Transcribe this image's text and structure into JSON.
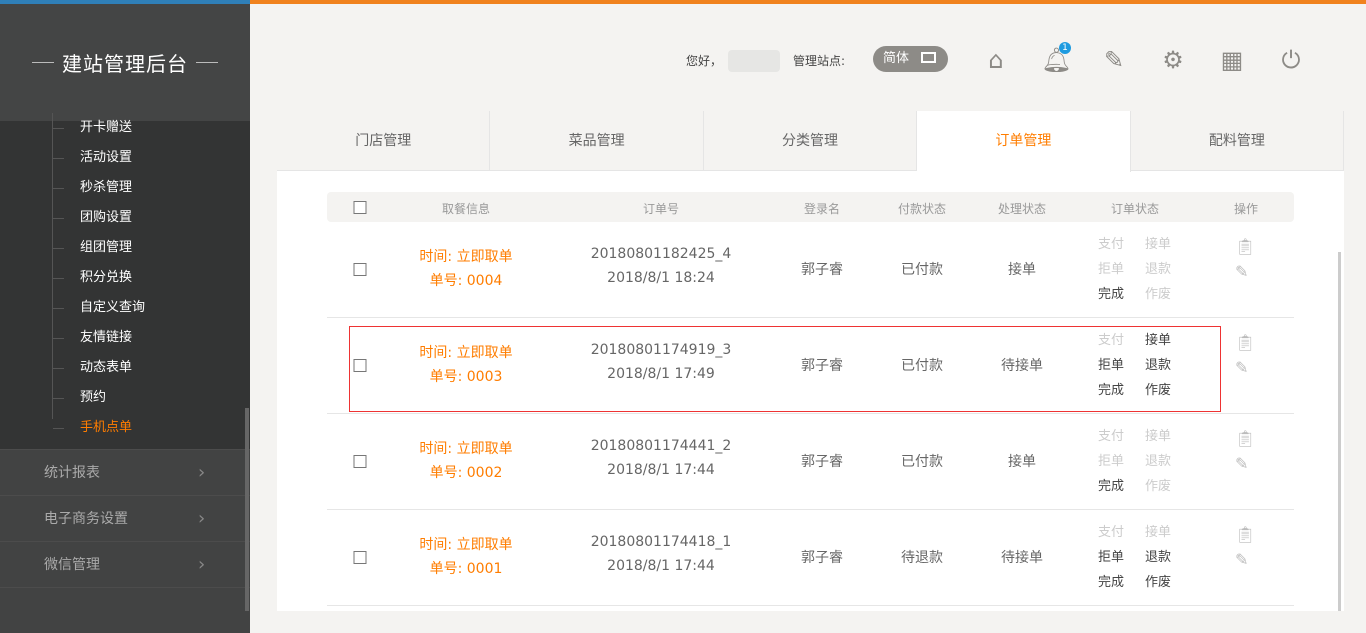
{
  "colors": {
    "accent": "#ff7d00",
    "sidebar": "#333434",
    "badge": "#1e9be0",
    "highlight": "#ee3333"
  },
  "sidebar": {
    "title": "建站管理后台",
    "subitems": [
      "开卡赠送",
      "活动设置",
      "秒杀管理",
      "团购设置",
      "组团管理",
      "积分兑换",
      "自定义查询",
      "友情链接",
      "动态表单",
      "预约",
      "手机点单"
    ],
    "active_subitem": "手机点单",
    "menus": [
      "统计报表",
      "电子商务设置",
      "微信管理"
    ]
  },
  "header": {
    "greeting": "您好，",
    "site_label": "管理站点:",
    "lang": "简体",
    "notification_count": "1",
    "icons": [
      "home-icon",
      "bell-icon",
      "edit-icon",
      "gear-icon",
      "grid-icon",
      "power-icon"
    ]
  },
  "tabs": [
    "门店管理",
    "菜品管理",
    "分类管理",
    "订单管理",
    "配料管理"
  ],
  "active_tab": "订单管理",
  "table": {
    "headers": [
      "取餐信息",
      "订单号",
      "登录名",
      "付款状态",
      "处理状态",
      "订单状态",
      "操作"
    ],
    "rows": [
      {
        "time": "时间: 立即取单",
        "num": "单号: 0004",
        "order_no": "20180801182425_4",
        "date": "2018/8/1 18:24",
        "user": "郭子睿",
        "pay": "已付款",
        "proc": "接单",
        "actions": [
          [
            "支付",
            false
          ],
          [
            "接单",
            false
          ],
          [
            "拒单",
            false
          ],
          [
            "退款",
            false
          ],
          [
            "完成",
            true
          ],
          [
            "作废",
            false
          ]
        ]
      },
      {
        "time": "时间: 立即取单",
        "num": "单号: 0003",
        "order_no": "20180801174919_3",
        "date": "2018/8/1 17:49",
        "user": "郭子睿",
        "pay": "已付款",
        "proc": "待接单",
        "actions": [
          [
            "支付",
            false
          ],
          [
            "接单",
            true
          ],
          [
            "拒单",
            true
          ],
          [
            "退款",
            true
          ],
          [
            "完成",
            true
          ],
          [
            "作废",
            true
          ]
        ]
      },
      {
        "time": "时间: 立即取单",
        "num": "单号: 0002",
        "order_no": "20180801174441_2",
        "date": "2018/8/1 17:44",
        "user": "郭子睿",
        "pay": "已付款",
        "proc": "接单",
        "actions": [
          [
            "支付",
            false
          ],
          [
            "接单",
            false
          ],
          [
            "拒单",
            false
          ],
          [
            "退款",
            false
          ],
          [
            "完成",
            true
          ],
          [
            "作废",
            false
          ]
        ]
      },
      {
        "time": "时间: 立即取单",
        "num": "单号: 0001",
        "order_no": "20180801174418_1",
        "date": "2018/8/1 17:44",
        "user": "郭子睿",
        "pay": "待退款",
        "proc": "待接单",
        "actions": [
          [
            "支付",
            false
          ],
          [
            "接单",
            false
          ],
          [
            "拒单",
            true
          ],
          [
            "退款",
            true
          ],
          [
            "完成",
            true
          ],
          [
            "作废",
            true
          ]
        ]
      }
    ]
  }
}
